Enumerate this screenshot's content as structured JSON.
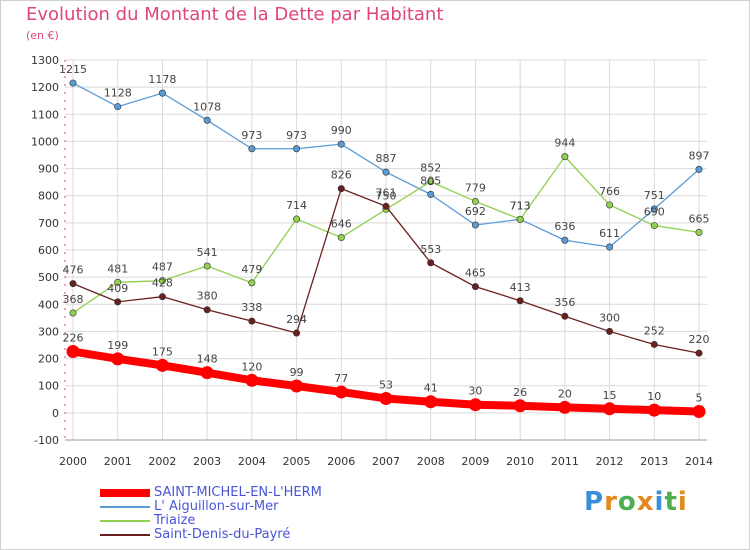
{
  "header": {
    "title": "Evolution du Montant de la Dette par Habitant",
    "subtitle": "(en €)"
  },
  "brand": {
    "letters": [
      "P",
      "r",
      "o",
      "x",
      "i",
      "t",
      "i"
    ],
    "colors": [
      "#3a8fd8",
      "#e28a1d",
      "#4caf50",
      "#e28a1d",
      "#3a8fd8",
      "#4caf50",
      "#e28a1d"
    ]
  },
  "chart_data": {
    "type": "line",
    "title": "Evolution du Montant de la Dette par Habitant",
    "subtitle": "(en €)",
    "xlabel": "",
    "ylabel": "",
    "x": [
      "2000",
      "2001",
      "2002",
      "2003",
      "2004",
      "2005",
      "2006",
      "2007",
      "2008",
      "2009",
      "2010",
      "2011",
      "2012",
      "2013",
      "2014"
    ],
    "ylim": [
      -100,
      1300
    ],
    "yticks": [
      -100,
      0,
      100,
      200,
      300,
      400,
      500,
      600,
      700,
      800,
      900,
      1000,
      1100,
      1200,
      1300
    ],
    "grid": true,
    "legend_position": "bottom-left",
    "series": [
      {
        "name": "SAINT-MICHEL-EN-L'HERM",
        "color": "#ff0000",
        "values": [
          226,
          199,
          175,
          148,
          120,
          99,
          77,
          53,
          41,
          30,
          26,
          20,
          15,
          10,
          5
        ],
        "emphasis": true
      },
      {
        "name": "L' Aiguillon-sur-Mer",
        "color": "#5b9bd5",
        "values": [
          1215,
          1128,
          1178,
          1078,
          973,
          973,
          990,
          887,
          805,
          692,
          713,
          636,
          611,
          751,
          897
        ]
      },
      {
        "name": "Triaize",
        "color": "#92d050",
        "values": [
          368,
          481,
          487,
          541,
          479,
          714,
          646,
          750,
          852,
          779,
          713,
          944,
          766,
          690,
          665
        ]
      },
      {
        "name": "Saint-Denis-du-Payré",
        "color": "#6b2020",
        "values": [
          476,
          409,
          428,
          380,
          338,
          294,
          826,
          761,
          553,
          465,
          413,
          356,
          300,
          252,
          220
        ]
      }
    ]
  }
}
